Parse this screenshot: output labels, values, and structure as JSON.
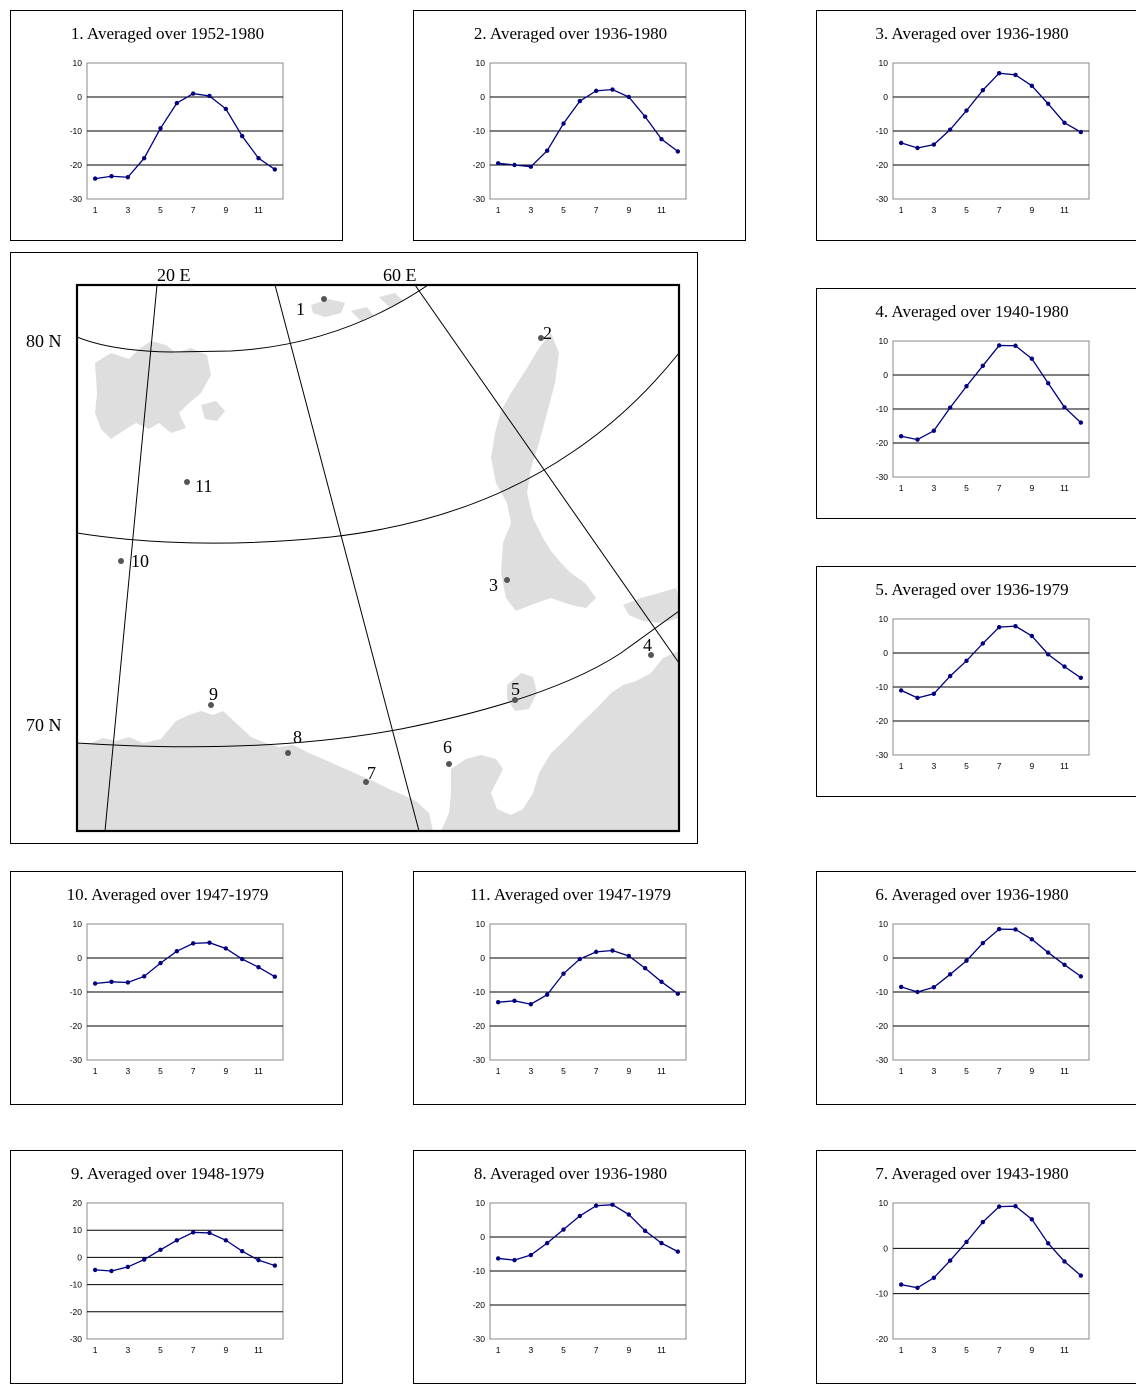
{
  "map": {
    "lon_labels": [
      "20 E",
      "60 E"
    ],
    "lat_labels": [
      "80 N",
      "70 N"
    ],
    "stations": [
      {
        "id": "station-1",
        "label": "1"
      },
      {
        "id": "station-2",
        "label": "2"
      },
      {
        "id": "station-3",
        "label": "3"
      },
      {
        "id": "station-4",
        "label": "4"
      },
      {
        "id": "station-5",
        "label": "5"
      },
      {
        "id": "station-6",
        "label": "6"
      },
      {
        "id": "station-7",
        "label": "7"
      },
      {
        "id": "station-8",
        "label": "8"
      },
      {
        "id": "station-9",
        "label": "9"
      },
      {
        "id": "station-10",
        "label": "10"
      },
      {
        "id": "station-11",
        "label": "11"
      }
    ]
  },
  "chart_data": [
    {
      "type": "line",
      "title": "1. Averaged over 1952-1980",
      "x": [
        1,
        2,
        3,
        4,
        5,
        6,
        7,
        8,
        9,
        10,
        11,
        12
      ],
      "series": [
        {
          "values": [
            -24,
            -23.3,
            -23.6,
            -18,
            -9.2,
            -1.8,
            1,
            0.3,
            -3.5,
            -11.5,
            -18,
            -21.3
          ]
        }
      ],
      "ylim": [
        -30,
        10
      ],
      "yticks": [
        10,
        0,
        -10,
        -20,
        -30
      ],
      "xticks": [
        1,
        3,
        5,
        7,
        9,
        11
      ],
      "color": "#000080"
    },
    {
      "type": "line",
      "title": "2. Averaged over 1936-1980",
      "x": [
        1,
        2,
        3,
        4,
        5,
        6,
        7,
        8,
        9,
        10,
        11,
        12
      ],
      "series": [
        {
          "values": [
            -19.5,
            -20,
            -20.5,
            -15.8,
            -7.8,
            -1.2,
            1.8,
            2.2,
            0,
            -5.8,
            -12.4,
            -16
          ]
        }
      ],
      "ylim": [
        -30,
        10
      ],
      "yticks": [
        10,
        0,
        -10,
        -20,
        -30
      ],
      "xticks": [
        1,
        3,
        5,
        7,
        9,
        11
      ],
      "color": "#000080"
    },
    {
      "type": "line",
      "title": "3. Averaged over 1936-1980",
      "x": [
        1,
        2,
        3,
        4,
        5,
        6,
        7,
        8,
        9,
        10,
        11,
        12
      ],
      "series": [
        {
          "values": [
            -13.5,
            -15,
            -14,
            -9.6,
            -4,
            2,
            7,
            6.5,
            3.3,
            -2,
            -7.6,
            -10.3
          ]
        }
      ],
      "ylim": [
        -30,
        10
      ],
      "yticks": [
        10,
        0,
        -10,
        -20,
        -30
      ],
      "xticks": [
        1,
        3,
        5,
        7,
        9,
        11
      ],
      "color": "#000080"
    },
    {
      "type": "line",
      "title": "4. Averaged over 1940-1980",
      "x": [
        1,
        2,
        3,
        4,
        5,
        6,
        7,
        8,
        9,
        10,
        11,
        12
      ],
      "series": [
        {
          "values": [
            -18,
            -19,
            -16.4,
            -9.6,
            -3.3,
            2.7,
            8.7,
            8.6,
            4.8,
            -2.4,
            -9.5,
            -14
          ]
        }
      ],
      "ylim": [
        -30,
        10
      ],
      "yticks": [
        10,
        0,
        -10,
        -20,
        -30
      ],
      "xticks": [
        1,
        3,
        5,
        7,
        9,
        11
      ],
      "color": "#000080"
    },
    {
      "type": "line",
      "title": "5. Averaged over 1936-1979",
      "x": [
        1,
        2,
        3,
        4,
        5,
        6,
        7,
        8,
        9,
        10,
        11,
        12
      ],
      "series": [
        {
          "values": [
            -11,
            -13.2,
            -12,
            -6.8,
            -2.3,
            2.8,
            7.6,
            7.9,
            5,
            -0.4,
            -4,
            -7.3
          ]
        }
      ],
      "ylim": [
        -30,
        10
      ],
      "yticks": [
        10,
        0,
        -10,
        -20,
        -30
      ],
      "xticks": [
        1,
        3,
        5,
        7,
        9,
        11
      ],
      "color": "#000080"
    },
    {
      "type": "line",
      "title": "6. Averaged over 1936-1980",
      "x": [
        1,
        2,
        3,
        4,
        5,
        6,
        7,
        8,
        9,
        10,
        11,
        12
      ],
      "series": [
        {
          "values": [
            -8.5,
            -10,
            -8.6,
            -4.8,
            -0.8,
            4.4,
            8.5,
            8.4,
            5.5,
            1.6,
            -2,
            -5.4
          ]
        }
      ],
      "ylim": [
        -30,
        10
      ],
      "yticks": [
        10,
        0,
        -10,
        -20,
        -30
      ],
      "xticks": [
        1,
        3,
        5,
        7,
        9,
        11
      ],
      "color": "#000080"
    },
    {
      "type": "line",
      "title": "7. Averaged over 1943-1980",
      "x": [
        1,
        2,
        3,
        4,
        5,
        6,
        7,
        8,
        9,
        10,
        11,
        12
      ],
      "series": [
        {
          "values": [
            -8,
            -8.7,
            -6.5,
            -2.7,
            1.4,
            5.8,
            9.2,
            9.3,
            6.4,
            1.1,
            -2.9,
            -6
          ]
        }
      ],
      "ylim": [
        -20,
        10
      ],
      "yticks": [
        10,
        0,
        -10,
        -20
      ],
      "xticks": [
        1,
        3,
        5,
        7,
        9,
        11
      ],
      "color": "#000080"
    },
    {
      "type": "line",
      "title": "8. Averaged over 1936-1980",
      "x": [
        1,
        2,
        3,
        4,
        5,
        6,
        7,
        8,
        9,
        10,
        11,
        12
      ],
      "series": [
        {
          "values": [
            -6.3,
            -6.8,
            -5.3,
            -1.8,
            2.2,
            6.2,
            9.2,
            9.5,
            6.6,
            1.8,
            -1.8,
            -4.3
          ]
        }
      ],
      "ylim": [
        -30,
        10
      ],
      "yticks": [
        10,
        0,
        -10,
        -20,
        -30
      ],
      "xticks": [
        1,
        3,
        5,
        7,
        9,
        11
      ],
      "color": "#000080"
    },
    {
      "type": "line",
      "title": "9. Averaged over 1948-1979",
      "x": [
        1,
        2,
        3,
        4,
        5,
        6,
        7,
        8,
        9,
        10,
        11,
        12
      ],
      "series": [
        {
          "values": [
            -4.6,
            -5,
            -3.5,
            -0.8,
            2.8,
            6.3,
            9.2,
            9,
            6.3,
            2.3,
            -1,
            -3
          ]
        }
      ],
      "ylim": [
        -30,
        20
      ],
      "yticks": [
        20,
        10,
        0,
        -10,
        -20,
        -30
      ],
      "xticks": [
        1,
        3,
        5,
        7,
        9,
        11
      ],
      "color": "#000080"
    },
    {
      "type": "line",
      "title": "10. Averaged over 1947-1979",
      "x": [
        1,
        2,
        3,
        4,
        5,
        6,
        7,
        8,
        9,
        10,
        11,
        12
      ],
      "series": [
        {
          "values": [
            -7.5,
            -7,
            -7.2,
            -5.4,
            -1.5,
            2,
            4.3,
            4.5,
            2.8,
            -0.3,
            -2.7,
            -5.5
          ]
        }
      ],
      "ylim": [
        -30,
        10
      ],
      "yticks": [
        10,
        0,
        -10,
        -20,
        -30
      ],
      "xticks": [
        1,
        3,
        5,
        7,
        9,
        11
      ],
      "color": "#000080"
    },
    {
      "type": "line",
      "title": "11. Averaged over 1947-1979",
      "x": [
        1,
        2,
        3,
        4,
        5,
        6,
        7,
        8,
        9,
        10,
        11,
        12
      ],
      "series": [
        {
          "values": [
            -13,
            -12.6,
            -13.6,
            -10.8,
            -4.6,
            -0.3,
            1.8,
            2.2,
            0.6,
            -3,
            -7,
            -10.5
          ]
        }
      ],
      "ylim": [
        -30,
        10
      ],
      "yticks": [
        10,
        0,
        -10,
        -20,
        -30
      ],
      "xticks": [
        1,
        3,
        5,
        7,
        9,
        11
      ],
      "color": "#000080"
    }
  ]
}
